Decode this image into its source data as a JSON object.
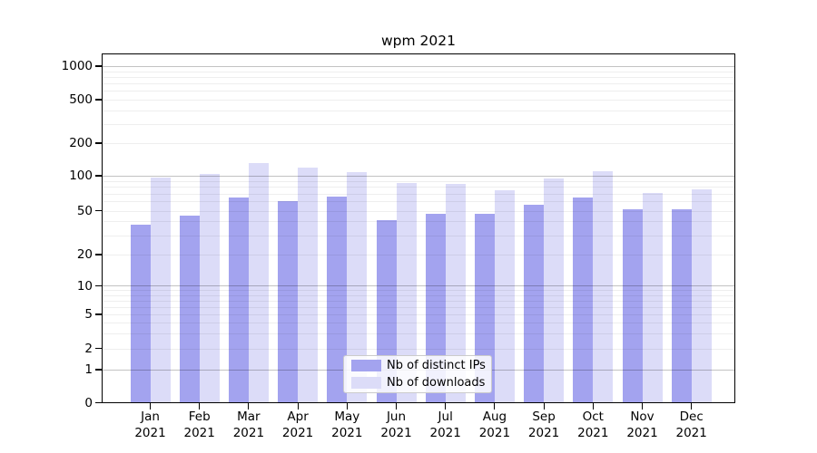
{
  "chart_data": {
    "type": "bar",
    "title": "wpm 2021",
    "categories": [
      "Jan 2021",
      "Feb 2021",
      "Mar 2021",
      "Apr 2021",
      "May 2021",
      "Jun 2021",
      "Jul 2021",
      "Aug 2021",
      "Sep 2021",
      "Oct 2021",
      "Nov 2021",
      "Dec 2021"
    ],
    "series": [
      {
        "name": "Nb of distinct IPs",
        "color": "#a3a3ef",
        "values": [
          37,
          45,
          65,
          60,
          66,
          41,
          47,
          47,
          56,
          65,
          51,
          51
        ]
      },
      {
        "name": "Nb of downloads",
        "color": "#dcdcf8",
        "values": [
          97,
          103,
          132,
          119,
          107,
          86,
          85,
          75,
          95,
          110,
          71,
          77
        ]
      }
    ],
    "y_axis": {
      "scale": "symlog",
      "ticks": [
        0,
        1,
        2,
        5,
        10,
        20,
        50,
        100,
        200,
        500,
        1000
      ],
      "ylim": [
        0,
        1000
      ]
    },
    "xlabel": "",
    "ylabel": "",
    "grid": {
      "horizontal": true,
      "minor_lines": true,
      "major_lines_at": [
        1,
        10,
        100,
        1000
      ]
    },
    "legend": {
      "position": "bottom-center"
    }
  }
}
